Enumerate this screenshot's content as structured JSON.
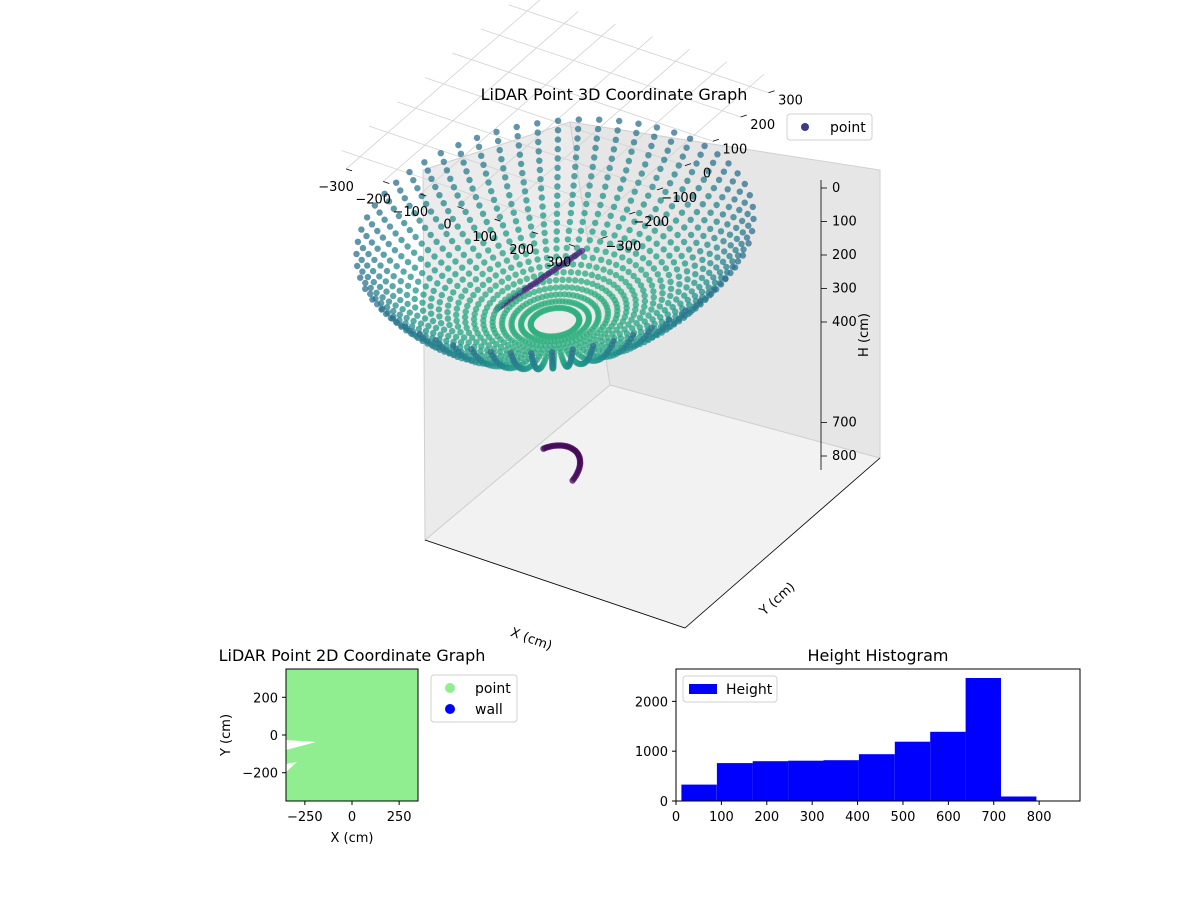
{
  "chart_data": [
    {
      "type": "scatter",
      "subtype": "3d",
      "title": "LiDAR Point 3D Coordinate Graph",
      "xlabel": "X (cm)",
      "ylabel": "Y (cm)",
      "zlabel": "H (cm)",
      "x_ticks": [
        "−300",
        "−200",
        "−100",
        "0",
        "100",
        "200",
        "300"
      ],
      "y_ticks": [
        "−300",
        "−200",
        "−100",
        "0",
        "100",
        "200",
        "300"
      ],
      "z_ticks": [
        "0",
        "100",
        "200",
        "300",
        "400",
        "700",
        "800"
      ],
      "xlim": [
        -350,
        350
      ],
      "ylim": [
        -350,
        350
      ],
      "zlim": [
        0,
        880
      ],
      "z_inverted": true,
      "grid": true,
      "colormap": "viridis",
      "legend": {
        "placement": "top-right",
        "entries": [
          {
            "label": "point",
            "color": "#3b3b86"
          }
        ]
      }
    },
    {
      "type": "scatter",
      "title": "LiDAR Point 2D Coordinate Graph",
      "xlabel": "X (cm)",
      "ylabel": "Y (cm)",
      "x_ticks": [
        "−250",
        "0",
        "250"
      ],
      "y_ticks": [
        "200",
        "0",
        "−200"
      ],
      "xlim": [
        -350,
        350
      ],
      "ylim": [
        -350,
        350
      ],
      "fill_color": "#90ee90",
      "legend": {
        "placement": "outside-right",
        "entries": [
          {
            "label": "point",
            "color": "#90ee90"
          },
          {
            "label": "wall",
            "color": "#0000ff"
          }
        ]
      }
    },
    {
      "type": "bar",
      "subtype": "histogram",
      "title": "Height Histogram",
      "x_ticks": [
        "0",
        "100",
        "200",
        "300",
        "400",
        "500",
        "600",
        "700",
        "800"
      ],
      "y_ticks": [
        "0",
        "1000",
        "2000"
      ],
      "xlim": [
        0,
        890
      ],
      "ylim": [
        0,
        2650
      ],
      "bin_edges": [
        12,
        90,
        169,
        247,
        325,
        403,
        482,
        560,
        638,
        716,
        794
      ],
      "values": [
        330,
        760,
        800,
        810,
        820,
        940,
        1190,
        1390,
        2470,
        90
      ],
      "color": "#0000ff",
      "legend": {
        "placement": "top-left",
        "entries": [
          {
            "label": "Height",
            "color": "#0000ff"
          }
        ]
      }
    }
  ]
}
